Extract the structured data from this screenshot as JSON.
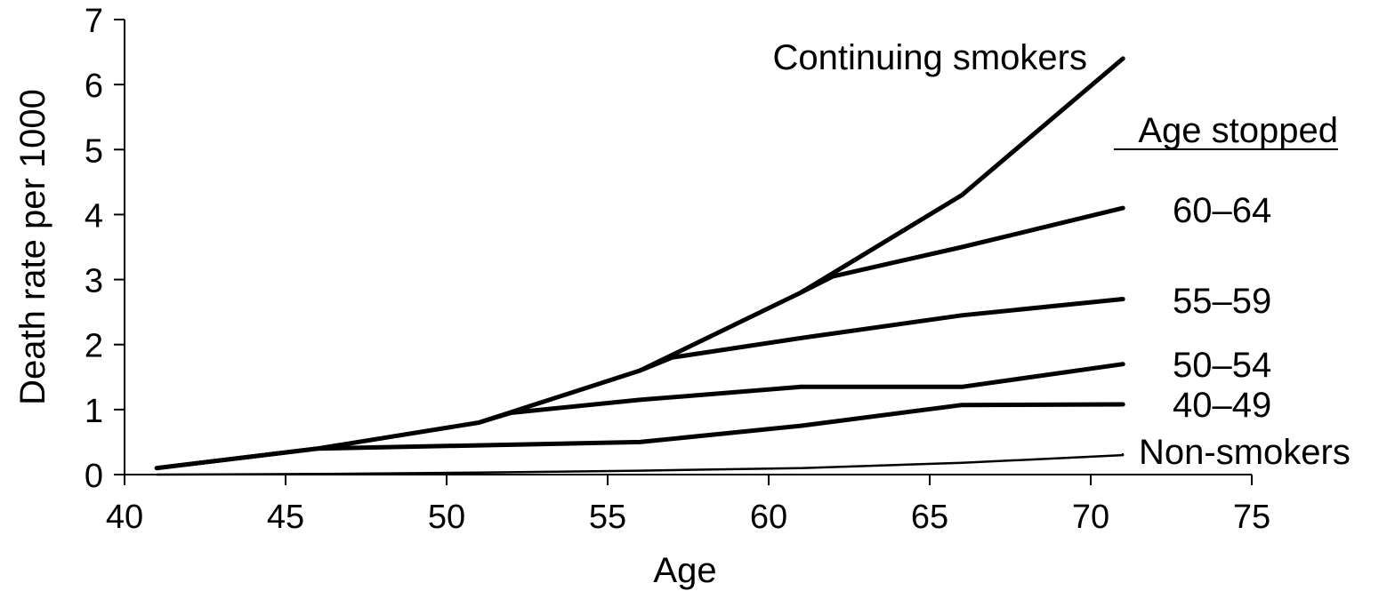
{
  "chart_data": {
    "type": "line",
    "title": "",
    "xlabel": "Age",
    "ylabel": "Death rate per 1000",
    "xlim": [
      40,
      75
    ],
    "ylim": [
      0,
      7
    ],
    "xticks": [
      40,
      45,
      50,
      55,
      60,
      65,
      70,
      75
    ],
    "yticks": [
      0,
      1,
      2,
      3,
      4,
      5,
      6,
      7
    ],
    "grid": false,
    "legend_header": "Age stopped",
    "series": [
      {
        "name": "Continuing smokers",
        "x": [
          41,
          46,
          51,
          56,
          61,
          66,
          71
        ],
        "y": [
          0.1,
          0.4,
          0.8,
          1.6,
          2.8,
          4.3,
          6.4
        ]
      },
      {
        "name": "60–64",
        "x": [
          61,
          62,
          66,
          71
        ],
        "y": [
          2.8,
          3.05,
          3.5,
          4.1
        ]
      },
      {
        "name": "55–59",
        "x": [
          56,
          57,
          61,
          66,
          71
        ],
        "y": [
          1.6,
          1.8,
          2.1,
          2.45,
          2.7
        ]
      },
      {
        "name": "50–54",
        "x": [
          51,
          52,
          56,
          61,
          66,
          71
        ],
        "y": [
          0.8,
          0.95,
          1.15,
          1.35,
          1.35,
          1.7
        ]
      },
      {
        "name": "40–49",
        "x": [
          41,
          46,
          51,
          56,
          61,
          66,
          71
        ],
        "y": [
          0.1,
          0.4,
          0.45,
          0.5,
          0.75,
          1.07,
          1.08
        ]
      },
      {
        "name": "Non-smokers",
        "x": [
          41,
          46,
          51,
          56,
          61,
          66,
          71
        ],
        "y": [
          0.0,
          0.01,
          0.03,
          0.06,
          0.1,
          0.18,
          0.3
        ]
      }
    ]
  }
}
